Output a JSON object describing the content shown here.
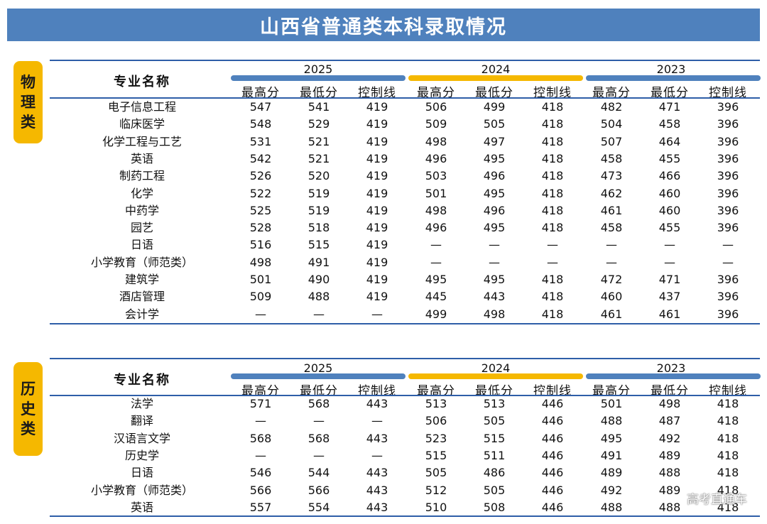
{
  "title": "山西省普通类本科录取情况",
  "watermark": "高考直通车",
  "header": {
    "name_col": "专业名称",
    "years": [
      "2025",
      "2024",
      "2023"
    ],
    "sub_cols": [
      "最高分",
      "最低分",
      "控制线"
    ]
  },
  "colors": {
    "title_bg": "#4f81bd",
    "accent_gold": "#f5b800",
    "rule_blue": "#2e5ea8"
  },
  "sections": [
    {
      "label": [
        "物",
        "理",
        "类"
      ],
      "rows": [
        {
          "name": "电子信息工程",
          "v": [
            "547",
            "541",
            "419",
            "506",
            "499",
            "418",
            "482",
            "471",
            "396"
          ]
        },
        {
          "name": "临床医学",
          "v": [
            "548",
            "529",
            "419",
            "509",
            "505",
            "418",
            "504",
            "458",
            "396"
          ]
        },
        {
          "name": "化学工程与工艺",
          "v": [
            "531",
            "521",
            "419",
            "498",
            "497",
            "418",
            "507",
            "464",
            "396"
          ]
        },
        {
          "name": "英语",
          "v": [
            "542",
            "521",
            "419",
            "496",
            "495",
            "418",
            "458",
            "455",
            "396"
          ]
        },
        {
          "name": "制药工程",
          "v": [
            "526",
            "520",
            "419",
            "503",
            "496",
            "418",
            "473",
            "466",
            "396"
          ]
        },
        {
          "name": "化学",
          "v": [
            "522",
            "519",
            "419",
            "501",
            "495",
            "418",
            "462",
            "460",
            "396"
          ]
        },
        {
          "name": "中药学",
          "v": [
            "525",
            "519",
            "419",
            "498",
            "496",
            "418",
            "461",
            "460",
            "396"
          ]
        },
        {
          "name": "园艺",
          "v": [
            "528",
            "518",
            "419",
            "496",
            "495",
            "418",
            "458",
            "455",
            "396"
          ]
        },
        {
          "name": "日语",
          "v": [
            "516",
            "515",
            "419",
            "—",
            "—",
            "—",
            "—",
            "—",
            "—"
          ]
        },
        {
          "name": "小学教育（师范类）",
          "v": [
            "498",
            "491",
            "419",
            "—",
            "—",
            "—",
            "—",
            "—",
            "—"
          ]
        },
        {
          "name": "建筑学",
          "v": [
            "501",
            "490",
            "419",
            "495",
            "495",
            "418",
            "472",
            "471",
            "396"
          ]
        },
        {
          "name": "酒店管理",
          "v": [
            "509",
            "488",
            "419",
            "445",
            "443",
            "418",
            "460",
            "437",
            "396"
          ]
        },
        {
          "name": "会计学",
          "v": [
            "—",
            "—",
            "—",
            "499",
            "498",
            "418",
            "461",
            "461",
            "396"
          ]
        }
      ]
    },
    {
      "label": [
        "历",
        "史",
        "类"
      ],
      "rows": [
        {
          "name": "法学",
          "v": [
            "571",
            "568",
            "443",
            "513",
            "513",
            "446",
            "501",
            "498",
            "418"
          ]
        },
        {
          "name": "翻译",
          "v": [
            "—",
            "—",
            "—",
            "506",
            "505",
            "446",
            "488",
            "487",
            "418"
          ]
        },
        {
          "name": "汉语言文学",
          "v": [
            "568",
            "568",
            "443",
            "523",
            "515",
            "446",
            "495",
            "492",
            "418"
          ]
        },
        {
          "name": "历史学",
          "v": [
            "—",
            "—",
            "—",
            "515",
            "511",
            "446",
            "491",
            "489",
            "418"
          ]
        },
        {
          "name": "日语",
          "v": [
            "546",
            "544",
            "443",
            "505",
            "486",
            "446",
            "489",
            "488",
            "418"
          ]
        },
        {
          "name": "小学教育（师范类）",
          "v": [
            "566",
            "566",
            "443",
            "512",
            "505",
            "446",
            "492",
            "489",
            "418"
          ]
        },
        {
          "name": "英语",
          "v": [
            "557",
            "554",
            "443",
            "510",
            "508",
            "446",
            "488",
            "488",
            "418"
          ]
        }
      ]
    }
  ]
}
